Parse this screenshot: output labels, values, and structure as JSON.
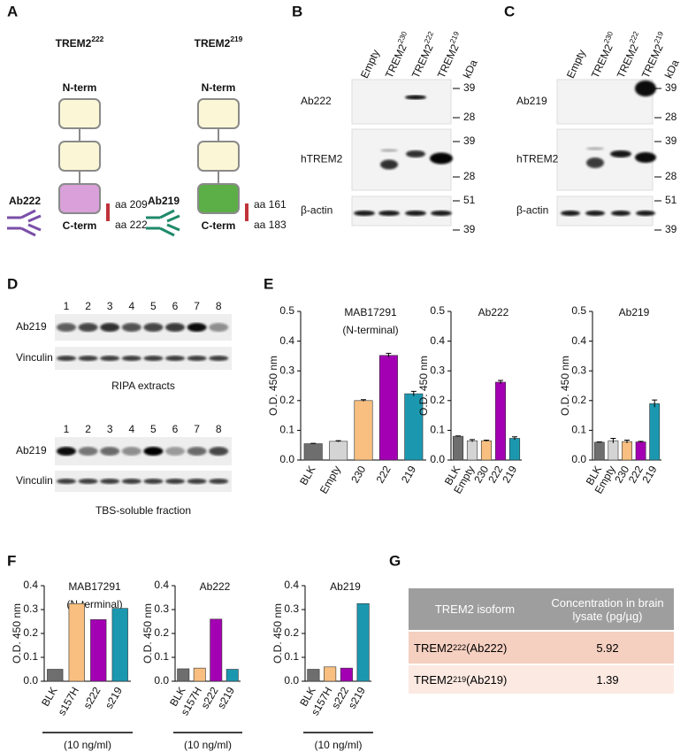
{
  "panel_labels": [
    "A",
    "B",
    "C",
    "D",
    "E",
    "F",
    "G"
  ],
  "panel_a": {
    "diagrams": [
      {
        "title": {
          "base": "TREM2",
          "sup": "222"
        },
        "n_term": "N-term",
        "c_term": "C-term",
        "antibody": "Ab222",
        "aa_start": "aa 209",
        "aa_end": "aa 222"
      },
      {
        "title": {
          "base": "TREM2",
          "sup": "219"
        },
        "n_term": "N-term",
        "c_term": "C-term",
        "antibody": "Ab219",
        "aa_start": "aa 161",
        "aa_end": "aa 183"
      }
    ]
  },
  "panel_b": {
    "lanes": [
      "Empty",
      {
        "base": "TREM2",
        "sup": "230"
      },
      {
        "base": "TREM2",
        "sup": "222"
      },
      {
        "base": "TREM2",
        "sup": "219"
      }
    ],
    "kda": "kDa",
    "rows": [
      {
        "label": "Ab222",
        "markers": [
          "39",
          "28"
        ]
      },
      {
        "label": "hTREM2",
        "markers": [
          "39",
          "28"
        ]
      },
      {
        "label": "β-actin",
        "markers": [
          "51",
          "39"
        ]
      }
    ]
  },
  "panel_c": {
    "lanes": [
      "Empty",
      {
        "base": "TREM2",
        "sup": "230"
      },
      {
        "base": "TREM2",
        "sup": "222"
      },
      {
        "base": "TREM2",
        "sup": "219"
      }
    ],
    "kda": "kDa",
    "rows": [
      {
        "label": "Ab219",
        "markers": [
          "39",
          "28"
        ]
      },
      {
        "label": "hTREM2",
        "markers": [
          "39",
          "28"
        ]
      },
      {
        "label": "β-actin",
        "markers": [
          "51",
          "39"
        ]
      }
    ]
  },
  "panel_d": {
    "lane_numbers": [
      "1",
      "2",
      "3",
      "4",
      "5",
      "6",
      "7",
      "8"
    ],
    "blots": [
      {
        "rows": [
          "Ab219",
          "Vinculin"
        ],
        "caption": "RIPA extracts"
      },
      {
        "rows": [
          "Ab219",
          "Vinculin"
        ],
        "caption": "TBS-soluble fraction"
      }
    ]
  },
  "chart_data": [
    {
      "type": "bar",
      "title": [
        "MAB17291",
        "(N-terminal)"
      ],
      "ylabel": "O.D. 450 nm",
      "categories": [
        "BLK",
        "Empty",
        "230",
        "222",
        "219"
      ],
      "values": [
        0.055,
        0.063,
        0.2,
        0.352,
        0.223
      ],
      "errors": [
        0.001,
        0.002,
        0.003,
        0.007,
        0.008
      ],
      "colors": [
        "#6e6e6e",
        "#d4d4d4",
        "#f8bf80",
        "#a400b3",
        "#1b98b0"
      ],
      "ylim": [
        0,
        0.5
      ],
      "yticks": [
        {
          "value": 0,
          "label": "0.0"
        },
        0.1,
        0.2,
        0.3,
        0.4,
        0.5
      ]
    },
    {
      "type": "bar",
      "title": [
        "Ab222"
      ],
      "ylabel": "O.D. 450 nm",
      "categories": [
        "BLK",
        "Empty",
        "230",
        "222",
        "219"
      ],
      "values": [
        0.08,
        0.065,
        0.065,
        0.262,
        0.073
      ],
      "errors": [
        0.001,
        0.004,
        0.002,
        0.006,
        0.005
      ],
      "colors": [
        "#6e6e6e",
        "#d4d4d4",
        "#f8bf80",
        "#a400b3",
        "#1b98b0"
      ],
      "ylim": [
        0,
        0.5
      ],
      "yticks": [
        {
          "value": 0,
          "label": "0.0"
        },
        0.1,
        0.2,
        0.3,
        0.4,
        0.5
      ]
    },
    {
      "type": "bar",
      "title": [
        "Ab219"
      ],
      "ylabel": "O.D. 450 nm",
      "categories": [
        "BLK",
        "Empty",
        "230",
        "222",
        "219"
      ],
      "values": [
        0.06,
        0.065,
        0.062,
        0.061,
        0.19
      ],
      "errors": [
        0.001,
        0.008,
        0.005,
        0.002,
        0.012
      ],
      "colors": [
        "#6e6e6e",
        "#d4d4d4",
        "#f8bf80",
        "#a400b3",
        "#1b98b0"
      ],
      "ylim": [
        0,
        0.5
      ],
      "yticks": [
        {
          "value": 0,
          "label": "0.0"
        },
        0.1,
        0.2,
        0.3,
        0.4,
        0.5
      ]
    },
    {
      "type": "bar",
      "title": [
        "MAB17291",
        "(N-terminal)"
      ],
      "ylabel": "O.D. 450 nm",
      "xlabel": "(10 ng/ml)",
      "categories": [
        "BLK",
        "s157H",
        "s222",
        "s219"
      ],
      "values": [
        0.05,
        0.325,
        0.258,
        0.305
      ],
      "colors": [
        "#6e6e6e",
        "#f8bf80",
        "#a400b3",
        "#1b98b0"
      ],
      "ylim": [
        0,
        0.4
      ],
      "yticks": [
        {
          "value": 0,
          "label": "0.0"
        },
        0.1,
        0.2,
        0.3,
        0.4
      ]
    },
    {
      "type": "bar",
      "title": [
        "Ab222"
      ],
      "ylabel": "O.D. 450 nm",
      "xlabel": "(10 ng/ml)",
      "categories": [
        "BLK",
        "s157H",
        "s222",
        "s219"
      ],
      "values": [
        0.052,
        0.055,
        0.26,
        0.05
      ],
      "colors": [
        "#6e6e6e",
        "#f8bf80",
        "#a400b3",
        "#1b98b0"
      ],
      "ylim": [
        0,
        0.4
      ],
      "yticks": [
        {
          "value": 0,
          "label": "0.0"
        },
        0.1,
        0.2,
        0.3,
        0.4
      ]
    },
    {
      "type": "bar",
      "title": [
        "Ab219"
      ],
      "ylabel": "O.D. 450 nm",
      "xlabel": "(10 ng/ml)",
      "categories": [
        "BLK",
        "s157H",
        "s222",
        "s219"
      ],
      "values": [
        0.05,
        0.06,
        0.055,
        0.325
      ],
      "colors": [
        "#6e6e6e",
        "#f8bf80",
        "#a400b3",
        "#1b98b0"
      ],
      "ylim": [
        0,
        0.4
      ],
      "yticks": [
        {
          "value": 0,
          "label": "0.0"
        },
        0.1,
        0.2,
        0.3,
        0.4
      ]
    }
  ],
  "table": {
    "header": [
      "TREM2 isoform",
      "Concentration in brain lysate (pg/µg)"
    ],
    "rows": [
      [
        {
          "base": "TREM2",
          "sup": "222",
          "suffix": " (Ab222)"
        },
        "5.92"
      ],
      [
        {
          "base": "TREM2",
          "sup": "219",
          "suffix": " (Ab219)"
        },
        "1.39"
      ]
    ]
  }
}
